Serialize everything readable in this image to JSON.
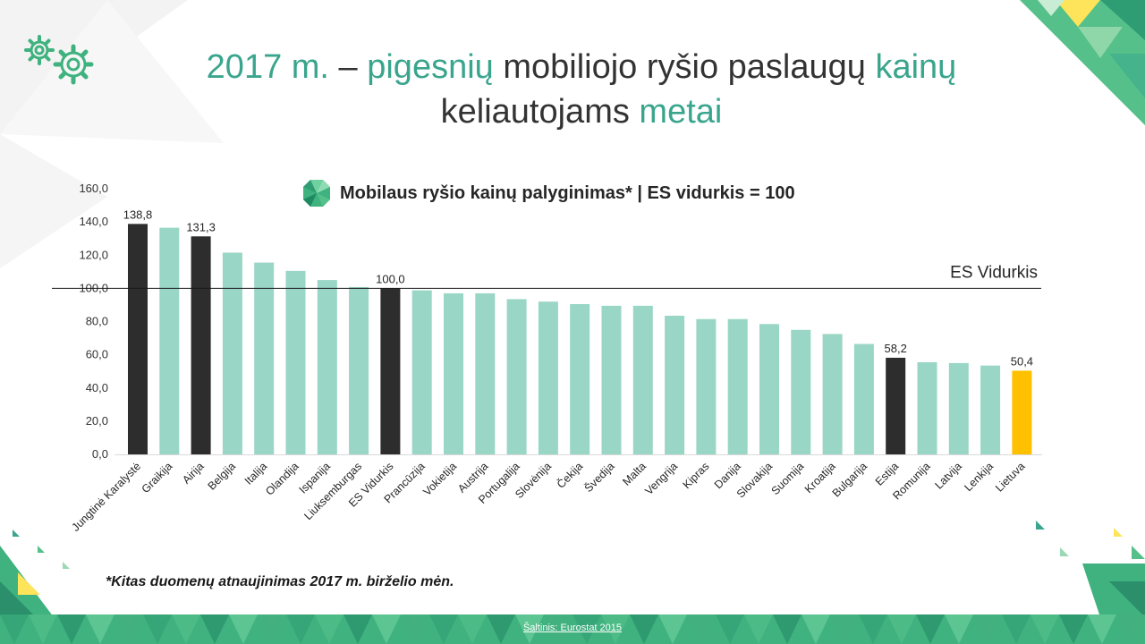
{
  "slide": {
    "title_parts": [
      "2017 m.",
      " – ",
      "pigesnių",
      " mobiliojo ryšio paslaugų ",
      "kainų",
      "keliautojams",
      " ",
      "metai"
    ],
    "footnote": "*Kitas duomenų atnaujinimas 2017 m. birželio mėn.",
    "source": "Šaltinis: Eurostat 2015"
  },
  "colors": {
    "accent": "#3aa58d",
    "bar_default": "#99d6c5",
    "bar_highlight": "#2d2d2d",
    "bar_lithuania": "#ffc000",
    "reference_line": "#1a1a1a"
  },
  "icons": {
    "gear": "gear-icon",
    "heading_marker": "green-gem-icon"
  },
  "chart_data": {
    "type": "bar",
    "title": "Mobilaus ryšio kainų palyginimas* | ES vidurkis = 100",
    "categories": [
      "Jungtinė Karalystė",
      "Graikija",
      "Airija",
      "Belgija",
      "Italija",
      "Olandija",
      "Ispanija",
      "Liuksemburgas",
      "ES Vidurkis",
      "Prancūzija",
      "Vokietija",
      "Austrija",
      "Portugalija",
      "Slovėnija",
      "Čekija",
      "Švedija",
      "Malta",
      "Vengrija",
      "Kipras",
      "Danija",
      "Slovakija",
      "Suomija",
      "Kroatija",
      "Bulgarija",
      "Estija",
      "Romunija",
      "Latvija",
      "Lenkija",
      "Lietuva"
    ],
    "values": [
      138.8,
      136.5,
      131.3,
      121.5,
      115.5,
      110.5,
      105.0,
      100.8,
      100.0,
      98.8,
      97.0,
      97.0,
      93.5,
      92.0,
      90.5,
      89.5,
      89.5,
      83.5,
      81.5,
      81.5,
      78.5,
      75.0,
      72.5,
      66.5,
      58.2,
      55.5,
      55.0,
      53.5,
      50.4
    ],
    "bar_kind": [
      "dark",
      "light",
      "dark",
      "light",
      "light",
      "light",
      "light",
      "light",
      "dark",
      "light",
      "light",
      "light",
      "light",
      "light",
      "light",
      "light",
      "light",
      "light",
      "light",
      "light",
      "light",
      "light",
      "light",
      "light",
      "dark",
      "light",
      "light",
      "light",
      "yellow"
    ],
    "data_labels": {
      "0": "138,8",
      "2": "131,3",
      "8": "100,0",
      "24": "58,2",
      "28": "50,4"
    },
    "y_ticks": [
      "0,0",
      "20,0",
      "40,0",
      "60,0",
      "80,0",
      "100,0",
      "120,0",
      "140,0",
      "160,0"
    ],
    "ylim": [
      0,
      160
    ],
    "reference_line": {
      "value": 100,
      "label": "ES Vidurkis"
    },
    "grid": false,
    "legend": "none"
  }
}
